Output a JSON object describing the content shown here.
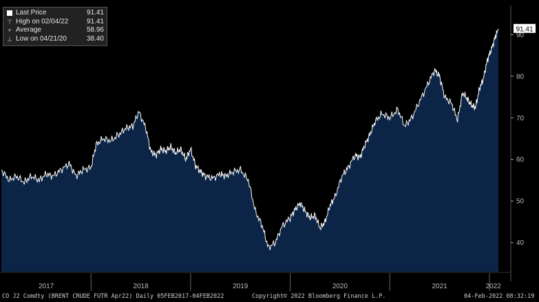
{
  "legend": {
    "last_price_label": "Last Price",
    "last_price_value": "91.41",
    "high_label": "High on 02/04/22",
    "high_value": "91.41",
    "average_label": "Average",
    "average_value": "58.96",
    "low_label": "Low on 04/21/20",
    "low_value": "38.40"
  },
  "last_price_tag": "91.41",
  "footer": {
    "left": "CO J2 Comdty  (BRENT CRUDE FUTR  Apr22)  Daily 05FEB2017-04FEB2022",
    "center": "Copyright© 2022 Bloomberg Finance L.P.",
    "right": "04-Feb-2022 08:32:19"
  },
  "colors": {
    "background": "#000000",
    "area_fill": "#0c2547",
    "line": "#ffffff",
    "axis": "#bbbbbb"
  },
  "chart_data": {
    "type": "area",
    "title": "",
    "xlabel": "",
    "ylabel": "",
    "ylim": [
      33,
      97
    ],
    "y_ticks": [
      40,
      50,
      60,
      70,
      80,
      90
    ],
    "x_labels": [
      "2017",
      "2018",
      "2019",
      "2020",
      "2021",
      "2022"
    ],
    "grid": false,
    "legend_position": "top-left",
    "series": [
      {
        "x": [
          2017.1,
          2017.18,
          2017.25,
          2017.33,
          2017.4,
          2017.48,
          2017.55,
          2017.62,
          2017.7,
          2017.78,
          2017.85,
          2017.92,
          2018.0,
          2018.05,
          2018.12,
          2018.2,
          2018.28,
          2018.35,
          2018.42,
          2018.48,
          2018.55,
          2018.6,
          2018.65,
          2018.7,
          2018.75,
          2018.8,
          2018.85,
          2018.9,
          2018.95,
          2019.0,
          2019.05,
          2019.1,
          2019.15,
          2019.22,
          2019.3,
          2019.35,
          2019.42,
          2019.5,
          2019.58,
          2019.65,
          2019.72,
          2019.78,
          2019.85,
          2019.92,
          2020.0,
          2020.05,
          2020.1,
          2020.15,
          2020.2,
          2020.25,
          2020.3,
          2020.35,
          2020.4,
          2020.45,
          2020.52,
          2020.58,
          2020.65,
          2020.7,
          2020.75,
          2020.8,
          2020.85,
          2020.92,
          2021.0,
          2021.08,
          2021.15,
          2021.22,
          2021.3,
          2021.38,
          2021.45,
          2021.5,
          2021.55,
          2021.62,
          2021.68,
          2021.73,
          2021.78,
          2021.82,
          2021.86,
          2021.9,
          2021.94,
          2021.98,
          2022.02,
          2022.06,
          2022.09
        ],
        "values": [
          57.5,
          55.0,
          56.0,
          54.5,
          56.0,
          55.0,
          56.5,
          56.0,
          57.5,
          59.0,
          56.0,
          57.5,
          58.0,
          63.5,
          65.0,
          64.5,
          66.0,
          67.5,
          68.0,
          71.5,
          67.5,
          62.0,
          61.0,
          62.5,
          62.0,
          63.0,
          61.5,
          62.5,
          60.0,
          62.5,
          58.5,
          57.0,
          56.0,
          55.5,
          56.5,
          56.0,
          57.0,
          57.5,
          55.0,
          47.5,
          44.0,
          38.8,
          40.0,
          44.0,
          46.0,
          48.0,
          49.5,
          47.5,
          46.0,
          46.5,
          43.5,
          45.0,
          49.0,
          51.0,
          56.0,
          58.0,
          61.0,
          60.5,
          63.5,
          66.0,
          69.0,
          71.0,
          70.0,
          72.0,
          68.0,
          70.0,
          74.0,
          78.0,
          81.5,
          80.0,
          75.0,
          73.5,
          69.5,
          76.0,
          74.5,
          73.0,
          72.5,
          77.0,
          79.5,
          84.0,
          86.5,
          89.5,
          91.41
        ]
      }
    ]
  }
}
